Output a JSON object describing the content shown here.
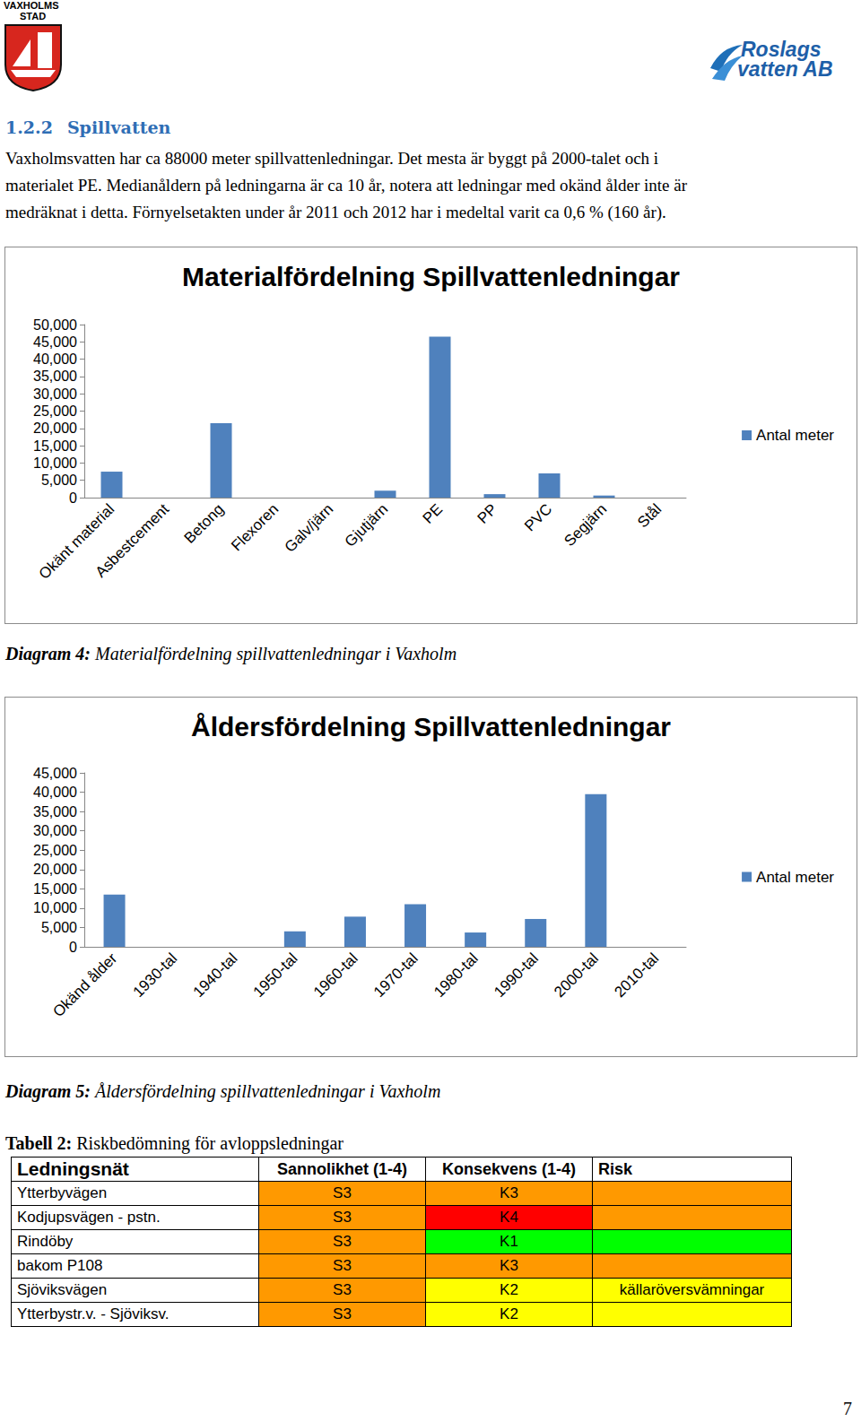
{
  "header": {
    "left_logo": [
      "VAXHOLMS",
      "STAD"
    ],
    "right_logo": [
      "Roslags",
      "vatten AB"
    ]
  },
  "section": {
    "number": "1.2.2",
    "title": "Spillvatten"
  },
  "paragraph": [
    "Vaxholmsvatten har ca 88000 meter spillvattenledningar. Det mesta är byggt på 2000-talet och i",
    "materialet PE. Medianåldern på ledningarna är ca 10 år, notera att ledningar med okänd ålder inte är",
    "medräknat i detta. Förnyelsetakten under år 2011 och 2012 har i medeltal varit ca 0,6 % (160 år)."
  ],
  "chart_data": [
    {
      "type": "bar",
      "title": "Materialfördelning Spillvattenledningar",
      "categories": [
        "Okänt material",
        "Asbestcement",
        "Betong",
        "Flexoren",
        "Galv/järn",
        "Gjutjärn",
        "PE",
        "PP",
        "PVC",
        "Segjärn",
        "Stål"
      ],
      "series": [
        {
          "name": "Antal meter",
          "color": "#4f81bd",
          "values": [
            7500,
            0,
            21500,
            0,
            0,
            2000,
            46500,
            1000,
            7000,
            600,
            0
          ]
        }
      ],
      "ylim": [
        0,
        50000
      ],
      "yticks": [
        0,
        5000,
        10000,
        15000,
        20000,
        25000,
        30000,
        35000,
        40000,
        45000,
        50000
      ],
      "grid": false,
      "legend": "right"
    },
    {
      "type": "bar",
      "title": "Åldersfördelning Spillvattenledningar",
      "categories": [
        "Okänd ålder",
        "1930-tal",
        "1940-tal",
        "1950-tal",
        "1960-tal",
        "1970-tal",
        "1980-tal",
        "1990-tal",
        "2000-tal",
        "2010-tal"
      ],
      "series": [
        {
          "name": "Antal meter",
          "color": "#4f81bd",
          "values": [
            13500,
            0,
            0,
            4000,
            7800,
            11000,
            3700,
            7200,
            39500,
            0
          ]
        }
      ],
      "ylim": [
        0,
        45000
      ],
      "yticks": [
        0,
        5000,
        10000,
        15000,
        20000,
        25000,
        30000,
        35000,
        40000,
        45000
      ],
      "grid": false,
      "legend": "right"
    }
  ],
  "captions": [
    {
      "label": "Diagram 4:",
      "text": "Materialfördelning spillvattenledningar i Vaxholm"
    },
    {
      "label": "Diagram 5:",
      "text": "Åldersfördelning spillvattenledningar i Vaxholm"
    }
  ],
  "table": {
    "caption": {
      "label": "Tabell 2:",
      "text": "Riskbedömning för avloppsledningar"
    },
    "header": [
      "Ledningsnät",
      "Sannolikhet (1-4)",
      "Konsekvens (1-4)",
      "Risk"
    ],
    "rows": [
      {
        "cells": [
          "Ytterbyvägen",
          "S3",
          "K3",
          ""
        ],
        "colors": [
          "#ffffff",
          "#ff9900",
          "#ff9900",
          "#ff9900"
        ]
      },
      {
        "cells": [
          "Kodjupsvägen - pstn.",
          "S3",
          "K4",
          ""
        ],
        "colors": [
          "#ffffff",
          "#ff9900",
          "#ff0000",
          "#ff9900"
        ]
      },
      {
        "cells": [
          "Rindöby",
          "S3",
          "K1",
          ""
        ],
        "colors": [
          "#ffffff",
          "#ff9900",
          "#00ff00",
          "#00ff00"
        ]
      },
      {
        "cells": [
          "bakom P108",
          "S3",
          "K3",
          ""
        ],
        "colors": [
          "#ffffff",
          "#ff9900",
          "#ff9900",
          "#ff9900"
        ]
      },
      {
        "cells": [
          "Sjöviksvägen",
          "S3",
          "K2",
          "källaröversvämningar"
        ],
        "colors": [
          "#ffffff",
          "#ff9900",
          "#ffff00",
          "#ffff00"
        ]
      },
      {
        "cells": [
          "Ytterbystr.v. - Sjöviksv.",
          "S3",
          "K2",
          ""
        ],
        "colors": [
          "#ffffff",
          "#ff9900",
          "#ffff00",
          "#ffff00"
        ]
      }
    ]
  },
  "page_number": "7"
}
